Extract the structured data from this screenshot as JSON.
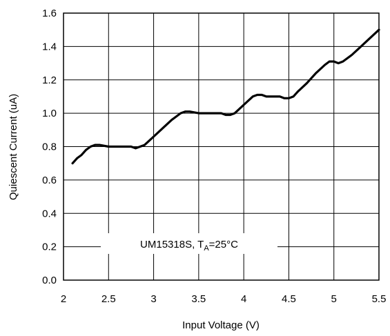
{
  "chart_data": {
    "type": "line",
    "xlabel": "Input Voltage (V)",
    "ylabel": "Quiescent Current (uA)",
    "xlim": [
      2,
      5.5
    ],
    "ylim": [
      0,
      1.6
    ],
    "x_ticks": [
      "2",
      "2.5",
      "3",
      "3.5",
      "4",
      "4.5",
      "5",
      "5.5"
    ],
    "y_ticks": [
      "0.0",
      "0.2",
      "0.4",
      "0.6",
      "0.8",
      "1.0",
      "1.2",
      "1.4",
      "1.6"
    ],
    "grid": true,
    "annotation": {
      "prefix": "UM15318S, T",
      "subscript": "A",
      "suffix": "=25°C"
    },
    "series": [
      {
        "color": "#000000",
        "x": [
          2.1,
          2.15,
          2.2,
          2.25,
          2.3,
          2.35,
          2.4,
          2.5,
          2.6,
          2.7,
          2.75,
          2.8,
          2.85,
          2.9,
          3.0,
          3.1,
          3.2,
          3.25,
          3.3,
          3.35,
          3.4,
          3.5,
          3.6,
          3.7,
          3.75,
          3.8,
          3.85,
          3.9,
          4.0,
          4.1,
          4.15,
          4.2,
          4.25,
          4.3,
          4.4,
          4.45,
          4.5,
          4.55,
          4.6,
          4.7,
          4.8,
          4.9,
          4.95,
          5.0,
          5.05,
          5.1,
          5.2,
          5.3,
          5.4,
          5.5
        ],
        "y": [
          0.7,
          0.73,
          0.75,
          0.78,
          0.8,
          0.81,
          0.81,
          0.8,
          0.8,
          0.8,
          0.8,
          0.79,
          0.8,
          0.81,
          0.86,
          0.91,
          0.96,
          0.98,
          1.0,
          1.01,
          1.01,
          1.0,
          1.0,
          1.0,
          1.0,
          0.99,
          0.99,
          1.0,
          1.05,
          1.1,
          1.11,
          1.11,
          1.1,
          1.1,
          1.1,
          1.09,
          1.09,
          1.1,
          1.13,
          1.18,
          1.24,
          1.29,
          1.31,
          1.31,
          1.3,
          1.31,
          1.35,
          1.4,
          1.45,
          1.5
        ]
      }
    ]
  }
}
